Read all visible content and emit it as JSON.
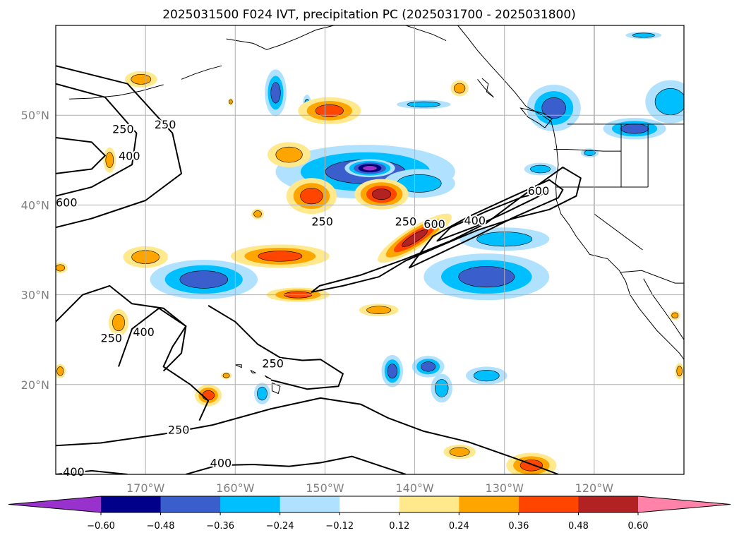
{
  "title": "2025031500 F024 IVT, precipitation PC (2025031700 - 2025031800)",
  "map": {
    "lon_range": [
      -180,
      -110
    ],
    "lat_range": [
      10,
      60
    ],
    "lon_ticks": [
      {
        "value": -170,
        "label": "170°W"
      },
      {
        "value": -160,
        "label": "160°W"
      },
      {
        "value": -150,
        "label": "150°W"
      },
      {
        "value": -140,
        "label": "140°W"
      },
      {
        "value": -130,
        "label": "130°W"
      },
      {
        "value": -120,
        "label": "120°W"
      }
    ],
    "lat_ticks": [
      {
        "value": 20,
        "label": "20°N"
      },
      {
        "value": 30,
        "label": "30°N"
      },
      {
        "value": 40,
        "label": "40°N"
      },
      {
        "value": 50,
        "label": "50°N"
      }
    ],
    "gridlines": true,
    "contour_levels": [
      250,
      400,
      600
    ],
    "contour_labels": [
      {
        "text": "250",
        "lon": -172.5,
        "lat": 48.5
      },
      {
        "text": "250",
        "lon": -167.8,
        "lat": 49.0
      },
      {
        "text": "400",
        "lon": -171.8,
        "lat": 45.5
      },
      {
        "text": "600",
        "lon": -178.8,
        "lat": 40.3
      },
      {
        "text": "250",
        "lon": -150.3,
        "lat": 38.2
      },
      {
        "text": "250",
        "lon": -141.0,
        "lat": 38.2
      },
      {
        "text": "600",
        "lon": -137.8,
        "lat": 37.9
      },
      {
        "text": "400",
        "lon": -133.3,
        "lat": 38.3
      },
      {
        "text": "600",
        "lon": -126.2,
        "lat": 41.6
      },
      {
        "text": "250",
        "lon": -173.8,
        "lat": 25.2
      },
      {
        "text": "400",
        "lon": -170.2,
        "lat": 25.9
      },
      {
        "text": "250",
        "lon": -155.8,
        "lat": 22.4
      },
      {
        "text": "250",
        "lon": -166.3,
        "lat": 15.0
      },
      {
        "text": "400",
        "lon": -178.0,
        "lat": 10.3
      },
      {
        "text": "400",
        "lon": -161.6,
        "lat": 11.3
      }
    ]
  },
  "colorbar": {
    "ticks": [
      "−0.60",
      "−0.48",
      "−0.36",
      "−0.24",
      "−0.12",
      "0.12",
      "0.24",
      "0.36",
      "0.48",
      "0.60"
    ],
    "colors": [
      "#9932cc",
      "#00008b",
      "#3a5fcd",
      "#00bfff",
      "#b0e2ff",
      "#ffffff",
      "#ffe98c",
      "#ffa500",
      "#ff4500",
      "#b22222",
      "#ff83a8"
    ],
    "extend": "both"
  },
  "chart_data": {
    "type": "heatmap",
    "title": "2025031500 F024 IVT, precipitation PC (2025031700 - 2025031800)",
    "xlabel": "",
    "ylabel": "",
    "xlim": [
      -180,
      -110
    ],
    "ylim": [
      10,
      60
    ],
    "levels": [
      -0.6,
      -0.48,
      -0.36,
      -0.24,
      -0.12,
      0.12,
      0.24,
      0.36,
      0.48,
      0.6
    ],
    "ivt_contour_levels": [
      250,
      400,
      600
    ],
    "blobs": [
      {
        "lon": -145.5,
        "lat": 43.7,
        "rx": 10.0,
        "ry": 3.0,
        "value": -0.45
      },
      {
        "lon": -145.0,
        "lat": 44.1,
        "rx": 2.8,
        "ry": 1.0,
        "value": -0.6
      },
      {
        "lon": -139.5,
        "lat": 42.4,
        "rx": 4.0,
        "ry": 1.6,
        "value": -0.3
      },
      {
        "lon": -163.5,
        "lat": 31.7,
        "rx": 6.0,
        "ry": 2.2,
        "value": -0.4
      },
      {
        "lon": -132.0,
        "lat": 32.0,
        "rx": 7.0,
        "ry": 2.6,
        "value": -0.4
      },
      {
        "lon": -130.0,
        "lat": 36.2,
        "rx": 5.0,
        "ry": 1.3,
        "value": -0.24
      },
      {
        "lon": -124.5,
        "lat": 50.8,
        "rx": 3.0,
        "ry": 2.6,
        "value": -0.36
      },
      {
        "lon": -111.5,
        "lat": 51.5,
        "rx": 2.8,
        "ry": 2.4,
        "value": -0.24
      },
      {
        "lon": -115.5,
        "lat": 48.5,
        "rx": 3.5,
        "ry": 1.2,
        "value": -0.36
      },
      {
        "lon": -155.5,
        "lat": 52.5,
        "rx": 1.2,
        "ry": 2.6,
        "value": -0.36
      },
      {
        "lon": -152.0,
        "lat": 51.0,
        "rx": 0.5,
        "ry": 1.3,
        "value": -0.24
      },
      {
        "lon": -138.5,
        "lat": 22.0,
        "rx": 1.8,
        "ry": 1.2,
        "value": -0.36
      },
      {
        "lon": -132.0,
        "lat": 21.0,
        "rx": 2.3,
        "ry": 1.0,
        "value": -0.24
      },
      {
        "lon": -137.0,
        "lat": 19.6,
        "rx": 1.2,
        "ry": 1.6,
        "value": -0.24
      },
      {
        "lon": -142.5,
        "lat": 21.5,
        "rx": 1.2,
        "ry": 1.8,
        "value": -0.36
      },
      {
        "lon": -157.0,
        "lat": 19.0,
        "rx": 0.9,
        "ry": 1.2,
        "value": -0.24
      },
      {
        "lon": -139.0,
        "lat": 51.2,
        "rx": 3.0,
        "ry": 0.5,
        "value": -0.24
      },
      {
        "lon": -114.5,
        "lat": 58.9,
        "rx": 2.0,
        "ry": 0.4,
        "value": -0.24
      },
      {
        "lon": -126.0,
        "lat": 44.0,
        "rx": 1.8,
        "ry": 0.7,
        "value": -0.24
      },
      {
        "lon": -120.5,
        "lat": 45.8,
        "rx": 1.0,
        "ry": 0.5,
        "value": -0.24
      },
      {
        "lon": -149.5,
        "lat": 50.5,
        "rx": 3.5,
        "ry": 1.5,
        "value": 0.4
      },
      {
        "lon": -154.0,
        "lat": 45.6,
        "rx": 2.4,
        "ry": 1.4,
        "value": 0.3
      },
      {
        "lon": -151.5,
        "lat": 41.0,
        "rx": 2.8,
        "ry": 2.0,
        "value": 0.45
      },
      {
        "lon": -143.7,
        "lat": 41.2,
        "rx": 3.0,
        "ry": 1.7,
        "value": 0.5
      },
      {
        "lon": -140.0,
        "lat": 36.3,
        "rx": 4.8,
        "ry": 1.2,
        "rotate": -32,
        "value": 0.5
      },
      {
        "lon": -155.0,
        "lat": 34.3,
        "rx": 5.5,
        "ry": 1.3,
        "value": 0.38
      },
      {
        "lon": -170.0,
        "lat": 34.2,
        "rx": 2.5,
        "ry": 1.2,
        "value": 0.35
      },
      {
        "lon": -153.0,
        "lat": 30.0,
        "rx": 3.5,
        "ry": 0.8,
        "value": 0.4
      },
      {
        "lon": -170.5,
        "lat": 54.0,
        "rx": 1.8,
        "ry": 0.9,
        "value": 0.3
      },
      {
        "lon": -174.0,
        "lat": 45.0,
        "rx": 0.7,
        "ry": 1.4,
        "value": 0.3
      },
      {
        "lon": -163.0,
        "lat": 18.8,
        "rx": 1.5,
        "ry": 1.2,
        "value": 0.4
      },
      {
        "lon": -173.0,
        "lat": 26.9,
        "rx": 1.1,
        "ry": 1.5,
        "value": 0.3
      },
      {
        "lon": -144.0,
        "lat": 28.3,
        "rx": 2.2,
        "ry": 0.7,
        "value": 0.3
      },
      {
        "lon": -135.0,
        "lat": 12.5,
        "rx": 1.8,
        "ry": 0.8,
        "value": 0.35
      },
      {
        "lon": -127.0,
        "lat": 11.0,
        "rx": 2.8,
        "ry": 1.4,
        "value": 0.4
      },
      {
        "lon": -135.0,
        "lat": 53.0,
        "rx": 1.0,
        "ry": 0.9,
        "value": 0.3
      },
      {
        "lon": -111.0,
        "lat": 27.7,
        "rx": 0.6,
        "ry": 0.5,
        "value": 0.3
      },
      {
        "lon": -110.5,
        "lat": 21.5,
        "rx": 0.5,
        "ry": 0.9,
        "value": 0.3
      },
      {
        "lon": -179.5,
        "lat": 33.0,
        "rx": 0.8,
        "ry": 0.6,
        "value": 0.3
      },
      {
        "lon": -179.5,
        "lat": 21.5,
        "rx": 0.6,
        "ry": 0.8,
        "value": 0.3
      },
      {
        "lon": -160.5,
        "lat": 51.5,
        "rx": 0.3,
        "ry": 0.4,
        "value": 0.3
      },
      {
        "lon": -157.5,
        "lat": 39.0,
        "rx": 0.7,
        "ry": 0.6,
        "value": 0.3
      },
      {
        "lon": -161.0,
        "lat": 21.0,
        "rx": 0.6,
        "ry": 0.4,
        "value": 0.3
      }
    ],
    "contours": [
      {
        "level": 250,
        "lon": [
          -180,
          -172,
          -167,
          -166,
          -170,
          -176,
          -180
        ],
        "lat": [
          55.5,
          53.5,
          48,
          43.5,
          40.5,
          38.5,
          37.5
        ]
      },
      {
        "level": 400,
        "lon": [
          -180,
          -174.5,
          -171,
          -171.5,
          -176,
          -180
        ],
        "lat": [
          53.5,
          52,
          48,
          44.5,
          42,
          41
        ]
      },
      {
        "level": 600,
        "lon": [
          -180,
          -176,
          -174.5,
          -176,
          -180
        ],
        "lat": [
          47.5,
          47,
          45.5,
          44,
          43.5
        ]
      },
      {
        "level": 250,
        "closed": true,
        "lon": [
          -150.6,
          -146,
          -141,
          -136,
          -132,
          -128,
          -123.5,
          -121.5,
          -122,
          -125,
          -129,
          -133,
          -137.5,
          -141,
          -144,
          -148,
          -151.5,
          -150.6
        ],
        "lat": [
          31,
          32.2,
          34,
          36,
          38,
          41,
          44.2,
          43,
          41,
          39.5,
          38.5,
          37.2,
          35.3,
          33.8,
          32,
          31,
          30.3,
          31
        ]
      },
      {
        "level": 400,
        "closed": true,
        "lon": [
          -138,
          -134,
          -129,
          -125,
          -123.5,
          -124,
          -129,
          -133,
          -137,
          -140.6,
          -138
        ],
        "lat": [
          36.5,
          38.7,
          41,
          42.8,
          41.7,
          40.8,
          38.6,
          36.6,
          34.7,
          33,
          36.5
        ]
      },
      {
        "level": 600,
        "closed": true,
        "lon": [
          -136,
          -132,
          -128,
          -125.3,
          -126.5,
          -130,
          -133.5,
          -137.5,
          -136
        ],
        "lat": [
          37.5,
          39.3,
          40.9,
          41.5,
          40.8,
          39.1,
          37.5,
          36,
          37.5
        ]
      },
      {
        "level": 250,
        "lon": [
          -180,
          -177,
          -174,
          -171.5,
          -168,
          -165.5,
          -167,
          -168,
          -165,
          -163,
          -164
        ],
        "lat": [
          27,
          30,
          31,
          29,
          28.5,
          26.5,
          24.2,
          22,
          20,
          18.2,
          16
        ]
      },
      {
        "level": 400,
        "lon": [
          -173,
          -171.5,
          -168.5,
          -165.5,
          -166,
          -168
        ],
        "lat": [
          22,
          26.2,
          28.5,
          26.5,
          23.5,
          21.5
        ]
      },
      {
        "level": 250,
        "lon": [
          -163,
          -160,
          -157.5,
          -155,
          -152.5,
          -150.5,
          -148,
          -148.5,
          -152,
          -156
        ],
        "lat": [
          28.8,
          27,
          24.5,
          23,
          22.7,
          22.8,
          21.2,
          19.8,
          19.5,
          20.5
        ]
      },
      {
        "level": 250,
        "lon": [
          -180,
          -175,
          -168,
          -162.5,
          -156,
          -150.5,
          -146,
          -143,
          -139,
          -134,
          -128,
          -124
        ],
        "lat": [
          13.2,
          13.5,
          14.5,
          15.5,
          17.3,
          18.5,
          17.8,
          16.3,
          14.8,
          13.6,
          11.5,
          10
        ]
      },
      {
        "level": 400,
        "lon": [
          -165.5,
          -162,
          -158,
          -154,
          -150.5,
          -147,
          -144,
          -141
        ],
        "lat": [
          10,
          11,
          11.1,
          10.9,
          11.3,
          12,
          11,
          10
        ]
      },
      {
        "level": 400,
        "lon": [
          -180,
          -176,
          -174,
          -172
        ],
        "lat": [
          10,
          10.4,
          10.2,
          10
        ]
      }
    ]
  }
}
